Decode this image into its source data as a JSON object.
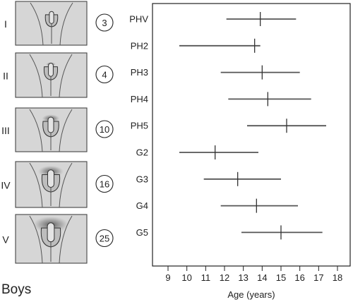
{
  "footer_label": "Boys",
  "stages": [
    {
      "roman": "I",
      "volume": "3"
    },
    {
      "roman": "II",
      "volume": "4"
    },
    {
      "roman": "III",
      "volume": "10"
    },
    {
      "roman": "IV",
      "volume": "16"
    },
    {
      "roman": "V",
      "volume": "25"
    }
  ],
  "chart_data": {
    "type": "interval",
    "xlabel": "Age (years)",
    "ylabel": "",
    "xlim": [
      8.2,
      18.5
    ],
    "xticks": [
      9,
      10,
      11,
      12,
      13,
      14,
      15,
      16,
      17,
      18
    ],
    "grid": false,
    "rows": [
      {
        "label": "PHV",
        "low": 12.1,
        "mean": 13.9,
        "high": 15.8
      },
      {
        "label": "PH2",
        "low": 9.6,
        "mean": 13.6,
        "high": 13.9
      },
      {
        "label": "PH3",
        "low": 11.8,
        "mean": 14.0,
        "high": 16.0
      },
      {
        "label": "PH4",
        "low": 12.2,
        "mean": 14.3,
        "high": 16.6
      },
      {
        "label": "PH5",
        "low": 13.2,
        "mean": 15.3,
        "high": 17.4
      },
      {
        "label": "G2",
        "low": 9.6,
        "mean": 11.5,
        "high": 13.8
      },
      {
        "label": "G3",
        "low": 10.9,
        "mean": 12.7,
        "high": 15.0
      },
      {
        "label": "G4",
        "low": 11.8,
        "mean": 13.7,
        "high": 15.9
      },
      {
        "label": "G5",
        "low": 12.9,
        "mean": 15.0,
        "high": 17.2
      }
    ]
  }
}
